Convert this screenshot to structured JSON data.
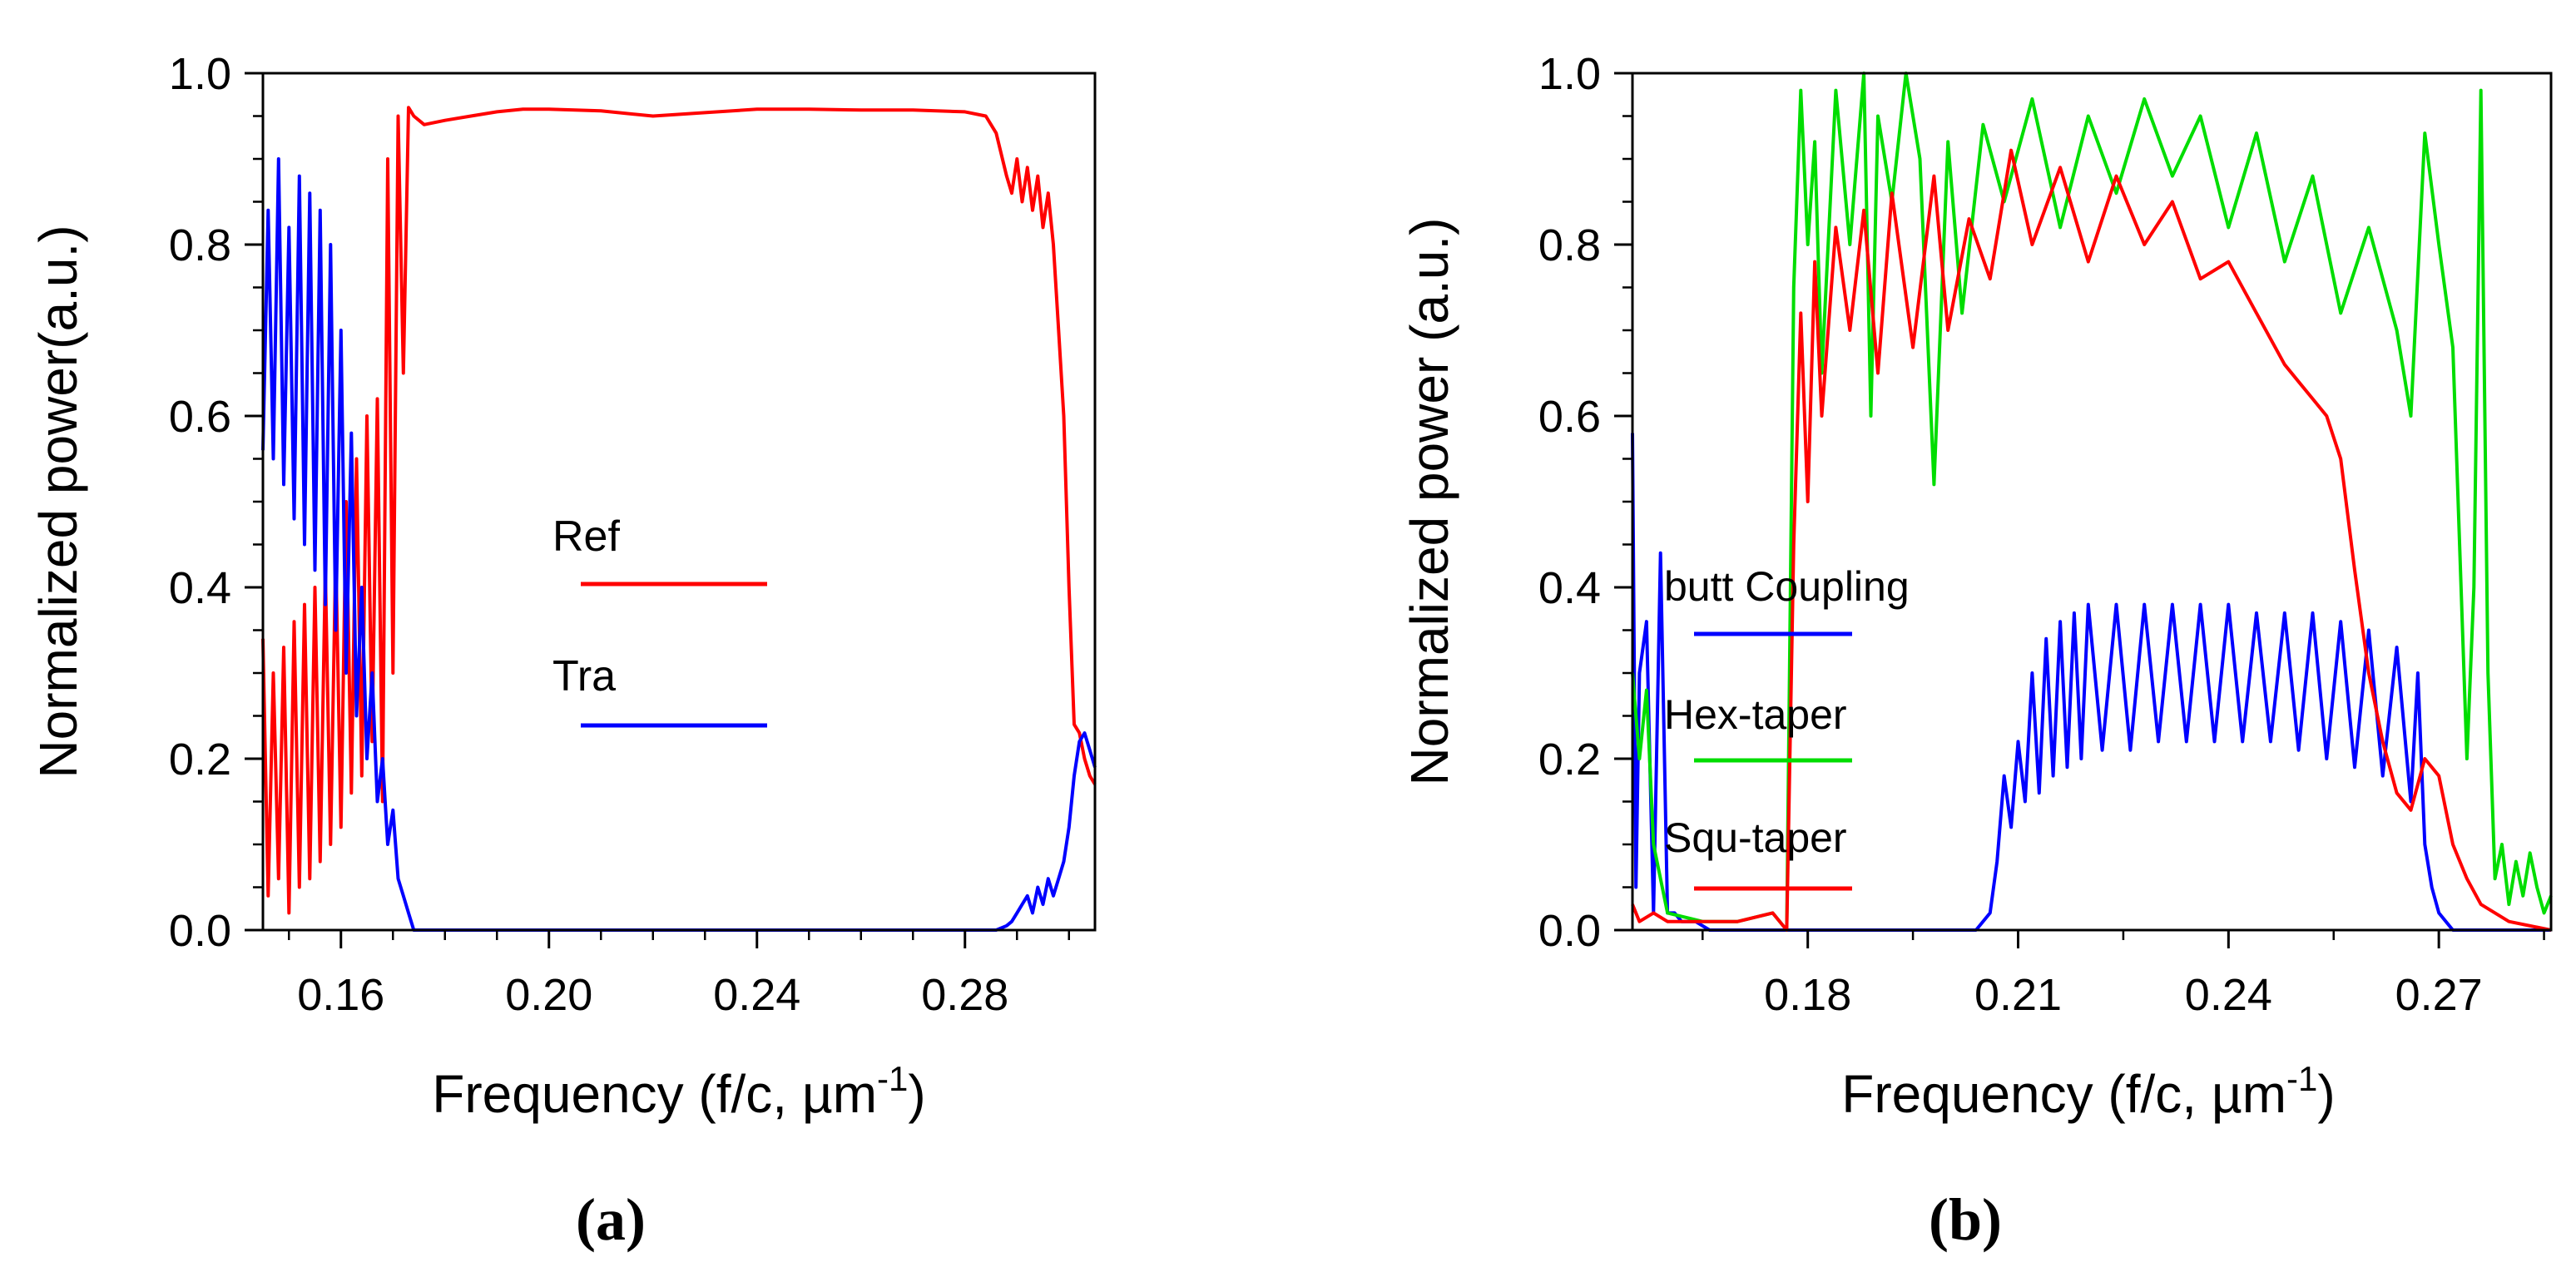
{
  "chart_data": [
    {
      "id": "a",
      "type": "line",
      "panel_label": "(a)",
      "xlabel": "Frequency (f/c, µm",
      "xlabel_sup": "-1",
      "xlabel_end": ")",
      "ylabel": "Normalized power(a.u.)",
      "xlim": [
        0.145,
        0.305
      ],
      "ylim": [
        0,
        1
      ],
      "xticks": [
        0.16,
        0.2,
        0.24,
        0.28
      ],
      "xtick_labels": [
        "0.16",
        "0.20",
        "0.24",
        "0.28"
      ],
      "yticks": [
        0,
        0.2,
        0.4,
        0.6,
        0.8,
        1.0
      ],
      "ytick_labels": [
        "0.0",
        "0.2",
        "0.4",
        "0.6",
        "0.8",
        "1.0"
      ],
      "legend": [
        {
          "label": "Ref",
          "color": "#ff0000"
        },
        {
          "label": "Tra",
          "color": "#0000ff"
        }
      ],
      "series": [
        {
          "name": "Ref",
          "color": "#ff0000",
          "x": [
            0.145,
            0.146,
            0.147,
            0.148,
            0.149,
            0.15,
            0.151,
            0.152,
            0.153,
            0.154,
            0.155,
            0.156,
            0.157,
            0.158,
            0.159,
            0.16,
            0.161,
            0.162,
            0.163,
            0.164,
            0.165,
            0.166,
            0.167,
            0.168,
            0.169,
            0.17,
            0.171,
            0.172,
            0.173,
            0.174,
            0.176,
            0.18,
            0.185,
            0.19,
            0.195,
            0.2,
            0.21,
            0.22,
            0.23,
            0.24,
            0.25,
            0.26,
            0.27,
            0.28,
            0.284,
            0.286,
            0.288,
            0.289,
            0.29,
            0.291,
            0.292,
            0.293,
            0.294,
            0.295,
            0.296,
            0.297,
            0.298,
            0.299,
            0.3,
            0.301,
            0.302,
            0.303,
            0.304,
            0.305
          ],
          "y": [
            0.34,
            0.04,
            0.3,
            0.06,
            0.33,
            0.02,
            0.36,
            0.05,
            0.38,
            0.06,
            0.4,
            0.08,
            0.42,
            0.1,
            0.44,
            0.12,
            0.5,
            0.16,
            0.55,
            0.18,
            0.6,
            0.22,
            0.62,
            0.15,
            0.9,
            0.3,
            0.95,
            0.65,
            0.96,
            0.95,
            0.94,
            0.945,
            0.95,
            0.955,
            0.958,
            0.958,
            0.956,
            0.95,
            0.954,
            0.958,
            0.958,
            0.957,
            0.957,
            0.955,
            0.95,
            0.93,
            0.88,
            0.86,
            0.9,
            0.85,
            0.89,
            0.84,
            0.88,
            0.82,
            0.86,
            0.8,
            0.7,
            0.6,
            0.4,
            0.24,
            0.23,
            0.2,
            0.18,
            0.17
          ]
        },
        {
          "name": "Tra",
          "color": "#0000ff",
          "x": [
            0.145,
            0.146,
            0.147,
            0.148,
            0.149,
            0.15,
            0.151,
            0.152,
            0.153,
            0.154,
            0.155,
            0.156,
            0.157,
            0.158,
            0.159,
            0.16,
            0.161,
            0.162,
            0.163,
            0.164,
            0.165,
            0.166,
            0.167,
            0.168,
            0.169,
            0.17,
            0.171,
            0.172,
            0.173,
            0.174,
            0.176,
            0.2,
            0.24,
            0.28,
            0.286,
            0.288,
            0.289,
            0.29,
            0.291,
            0.292,
            0.293,
            0.294,
            0.295,
            0.296,
            0.297,
            0.298,
            0.299,
            0.3,
            0.301,
            0.302,
            0.303,
            0.304,
            0.305
          ],
          "y": [
            0.56,
            0.84,
            0.55,
            0.9,
            0.52,
            0.82,
            0.48,
            0.88,
            0.45,
            0.86,
            0.42,
            0.84,
            0.38,
            0.8,
            0.35,
            0.7,
            0.3,
            0.58,
            0.25,
            0.4,
            0.2,
            0.3,
            0.15,
            0.2,
            0.1,
            0.14,
            0.06,
            0.04,
            0.02,
            0.0,
            0.0,
            0.0,
            0.0,
            0.0,
            0.0,
            0.005,
            0.01,
            0.02,
            0.03,
            0.04,
            0.02,
            0.05,
            0.03,
            0.06,
            0.04,
            0.06,
            0.08,
            0.12,
            0.18,
            0.22,
            0.23,
            0.21,
            0.19
          ]
        }
      ]
    },
    {
      "id": "b",
      "type": "line",
      "panel_label": "(b)",
      "xlabel": "Frequency (f/c, µm",
      "xlabel_sup": "-1",
      "xlabel_end": ")",
      "ylabel": "Normalized power (a.u.)",
      "xlim": [
        0.155,
        0.286
      ],
      "ylim": [
        0,
        1
      ],
      "xticks": [
        0.18,
        0.21,
        0.24,
        0.27
      ],
      "xtick_labels": [
        "0.18",
        "0.21",
        "0.24",
        "0.27"
      ],
      "yticks": [
        0,
        0.2,
        0.4,
        0.6,
        0.8,
        1.0
      ],
      "ytick_labels": [
        "0.0",
        "0.2",
        "0.4",
        "0.6",
        "0.8",
        "1.0"
      ],
      "legend": [
        {
          "label": "butt Coupling",
          "color": "#0000ff"
        },
        {
          "label": "Hex-taper",
          "color": "#00dd00"
        },
        {
          "label": "Squ-taper",
          "color": "#ff0000"
        }
      ],
      "series": [
        {
          "name": "butt Coupling",
          "color": "#0000ff",
          "x": [
            0.155,
            0.1555,
            0.156,
            0.157,
            0.158,
            0.159,
            0.16,
            0.161,
            0.162,
            0.164,
            0.166,
            0.17,
            0.18,
            0.19,
            0.2,
            0.204,
            0.206,
            0.207,
            0.208,
            0.209,
            0.21,
            0.211,
            0.212,
            0.213,
            0.214,
            0.215,
            0.216,
            0.217,
            0.218,
            0.219,
            0.22,
            0.222,
            0.224,
            0.226,
            0.228,
            0.23,
            0.232,
            0.234,
            0.236,
            0.238,
            0.24,
            0.242,
            0.244,
            0.246,
            0.248,
            0.25,
            0.252,
            0.254,
            0.256,
            0.258,
            0.26,
            0.262,
            0.264,
            0.266,
            0.267,
            0.268,
            0.269,
            0.27,
            0.272,
            0.28,
            0.286
          ],
          "y": [
            0.58,
            0.05,
            0.3,
            0.36,
            0.02,
            0.44,
            0.02,
            0.02,
            0.01,
            0.01,
            0.0,
            0.0,
            0.0,
            0.0,
            0.0,
            0.0,
            0.02,
            0.08,
            0.18,
            0.12,
            0.22,
            0.15,
            0.3,
            0.16,
            0.34,
            0.18,
            0.36,
            0.19,
            0.37,
            0.2,
            0.38,
            0.21,
            0.38,
            0.21,
            0.38,
            0.22,
            0.38,
            0.22,
            0.38,
            0.22,
            0.38,
            0.22,
            0.37,
            0.22,
            0.37,
            0.21,
            0.37,
            0.2,
            0.36,
            0.19,
            0.35,
            0.18,
            0.33,
            0.15,
            0.3,
            0.1,
            0.05,
            0.02,
            0.0,
            0.0,
            0.0
          ]
        },
        {
          "name": "Hex-taper",
          "color": "#00dd00",
          "x": [
            0.155,
            0.156,
            0.157,
            0.158,
            0.16,
            0.165,
            0.17,
            0.175,
            0.177,
            0.178,
            0.179,
            0.18,
            0.181,
            0.182,
            0.184,
            0.186,
            0.188,
            0.189,
            0.19,
            0.192,
            0.194,
            0.196,
            0.198,
            0.2,
            0.202,
            0.205,
            0.208,
            0.212,
            0.216,
            0.22,
            0.224,
            0.228,
            0.232,
            0.236,
            0.24,
            0.244,
            0.248,
            0.252,
            0.256,
            0.26,
            0.264,
            0.266,
            0.268,
            0.27,
            0.272,
            0.274,
            0.275,
            0.276,
            0.277,
            0.278,
            0.279,
            0.28,
            0.281,
            0.282,
            0.283,
            0.284,
            0.285,
            0.286
          ],
          "y": [
            0.3,
            0.2,
            0.28,
            0.1,
            0.02,
            0.01,
            0.01,
            0.02,
            0.0,
            0.75,
            0.98,
            0.8,
            0.92,
            0.65,
            0.98,
            0.8,
            1.0,
            0.6,
            0.95,
            0.85,
            1.0,
            0.9,
            0.52,
            0.92,
            0.72,
            0.94,
            0.85,
            0.97,
            0.82,
            0.95,
            0.86,
            0.97,
            0.88,
            0.95,
            0.82,
            0.93,
            0.78,
            0.88,
            0.72,
            0.82,
            0.7,
            0.6,
            0.93,
            0.8,
            0.68,
            0.2,
            0.4,
            0.98,
            0.3,
            0.06,
            0.1,
            0.03,
            0.08,
            0.04,
            0.09,
            0.05,
            0.02,
            0.04
          ]
        },
        {
          "name": "Squ-taper",
          "color": "#ff0000",
          "x": [
            0.155,
            0.156,
            0.158,
            0.16,
            0.165,
            0.17,
            0.175,
            0.177,
            0.178,
            0.179,
            0.18,
            0.181,
            0.182,
            0.184,
            0.186,
            0.188,
            0.19,
            0.192,
            0.195,
            0.198,
            0.2,
            0.203,
            0.206,
            0.209,
            0.212,
            0.216,
            0.22,
            0.224,
            0.228,
            0.232,
            0.236,
            0.24,
            0.244,
            0.248,
            0.25,
            0.252,
            0.254,
            0.256,
            0.258,
            0.26,
            0.262,
            0.264,
            0.266,
            0.268,
            0.27,
            0.272,
            0.274,
            0.276,
            0.28,
            0.286
          ],
          "y": [
            0.03,
            0.01,
            0.02,
            0.01,
            0.01,
            0.01,
            0.02,
            0.0,
            0.45,
            0.72,
            0.5,
            0.78,
            0.6,
            0.82,
            0.7,
            0.84,
            0.65,
            0.86,
            0.68,
            0.88,
            0.7,
            0.83,
            0.76,
            0.91,
            0.8,
            0.89,
            0.78,
            0.88,
            0.8,
            0.85,
            0.76,
            0.78,
            0.72,
            0.66,
            0.64,
            0.62,
            0.6,
            0.55,
            0.42,
            0.3,
            0.22,
            0.16,
            0.14,
            0.2,
            0.18,
            0.1,
            0.06,
            0.03,
            0.01,
            0.0
          ]
        }
      ]
    }
  ]
}
